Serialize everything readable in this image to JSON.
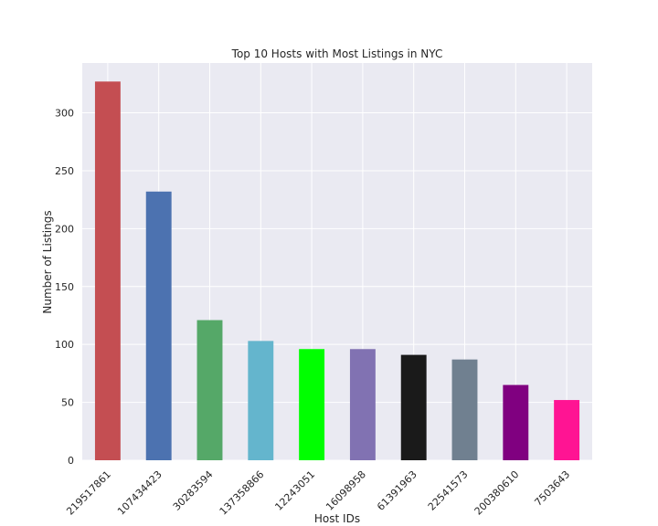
{
  "chart_data": {
    "type": "bar",
    "title": "Top 10 Hosts with Most Listings in NYC",
    "xlabel": "Host IDs",
    "ylabel": "Number of Listings",
    "categories": [
      "219517861",
      "107434423",
      "30283594",
      "137358866",
      "12243051",
      "16098958",
      "61391963",
      "22541573",
      "200380610",
      "7503643"
    ],
    "values": [
      327,
      232,
      121,
      103,
      96,
      96,
      91,
      87,
      65,
      52
    ],
    "colors": [
      "#c44e52",
      "#4c72b0",
      "#55a868",
      "#64b5cd",
      "#00ff00",
      "#8172b2",
      "#1a1a1a",
      "#708090",
      "#800080",
      "#ff1493"
    ],
    "ylim": [
      0,
      343
    ],
    "yticks": [
      0,
      50,
      100,
      150,
      200,
      250,
      300
    ],
    "grid": true,
    "background": "#eaeaf2",
    "legend": "none"
  }
}
